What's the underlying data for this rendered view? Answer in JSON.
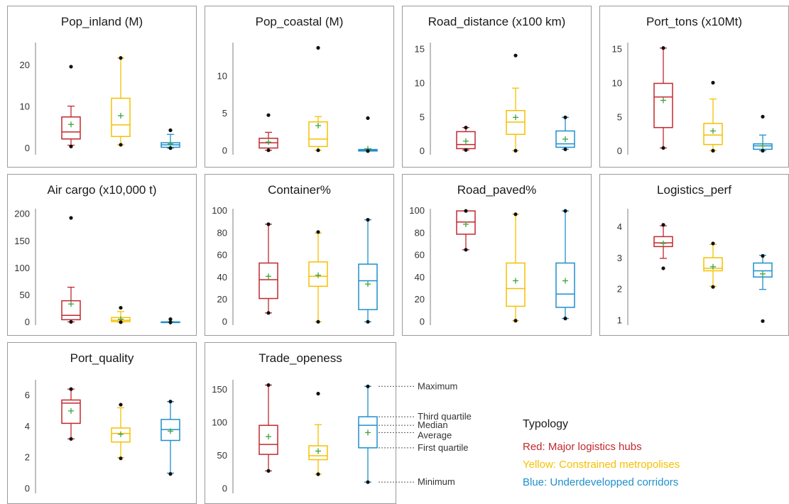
{
  "colors": {
    "red": "#c0282e",
    "yellow": "#f5c000",
    "blue": "#1e8fcc",
    "average_marker": "#3aa53a",
    "outlier": "#111111",
    "frame": "#9a9a9a",
    "axis": "#7f7f7f"
  },
  "chart_data": [
    {
      "type": "boxplot",
      "title": "Pop_inland (M)",
      "yticks": [
        0,
        10,
        20
      ],
      "ylim": [
        -1.5,
        25.5
      ],
      "boxes": [
        {
          "group": "red",
          "min": 0.8,
          "q1": 2.3,
          "median": 4.0,
          "q3": 7.6,
          "max": 10.2,
          "mean": 5.8,
          "outliers": [
            19.7,
            0.5
          ]
        },
        {
          "group": "yellow",
          "min": 0.9,
          "q1": 2.9,
          "median": 5.7,
          "q3": 12.1,
          "max": 21.8,
          "mean": 7.9,
          "outliers": [
            21.8,
            0.9
          ]
        },
        {
          "group": "blue",
          "min": 0.1,
          "q1": 0.3,
          "median": 0.9,
          "q3": 1.4,
          "max": 3.4,
          "mean": 1.1,
          "outliers": [
            4.4,
            0.1
          ]
        }
      ]
    },
    {
      "type": "boxplot",
      "title": "Pop_coastal (M)",
      "yticks": [
        0,
        5,
        10
      ],
      "ylim": [
        -0.5,
        14.5
      ],
      "boxes": [
        {
          "group": "red",
          "min": 0.1,
          "q1": 0.4,
          "median": 1.1,
          "q3": 1.7,
          "max": 2.5,
          "mean": 1.2,
          "outliers": [
            4.8,
            0.1
          ]
        },
        {
          "group": "yellow",
          "min": 0.1,
          "q1": 0.6,
          "median": 1.6,
          "q3": 3.9,
          "max": 4.6,
          "mean": 3.4,
          "outliers": [
            13.8,
            0.1
          ]
        },
        {
          "group": "blue",
          "min": 0.0,
          "q1": 0.0,
          "median": 0.1,
          "q3": 0.2,
          "max": 0.3,
          "mean": 0.3,
          "outliers": [
            4.4,
            0.0
          ]
        }
      ]
    },
    {
      "type": "boxplot",
      "title": "Road_distance (x100 km)",
      "yticks": [
        0,
        5,
        10,
        15
      ],
      "ylim": [
        -0.5,
        16.0
      ],
      "boxes": [
        {
          "group": "red",
          "min": 0.2,
          "q1": 0.4,
          "median": 1.0,
          "q3": 2.9,
          "max": 3.5,
          "mean": 1.5,
          "outliers": [
            3.5,
            0.2
          ]
        },
        {
          "group": "yellow",
          "min": 0.1,
          "q1": 2.5,
          "median": 4.3,
          "q3": 6.0,
          "max": 9.3,
          "mean": 5.0,
          "outliers": [
            14.1,
            0.1
          ]
        },
        {
          "group": "blue",
          "min": 0.3,
          "q1": 0.6,
          "median": 1.1,
          "q3": 3.0,
          "max": 5.0,
          "mean": 1.8,
          "outliers": [
            5.0,
            0.3
          ]
        }
      ]
    },
    {
      "type": "boxplot",
      "title": "Port_tons (x10Mt)",
      "yticks": [
        0,
        5,
        10,
        15
      ],
      "ylim": [
        -0.5,
        16.0
      ],
      "boxes": [
        {
          "group": "red",
          "min": 0.5,
          "q1": 3.5,
          "median": 8.0,
          "q3": 10.0,
          "max": 15.2,
          "mean": 7.5,
          "outliers": [
            15.2,
            0.5
          ]
        },
        {
          "group": "yellow",
          "min": 0.1,
          "q1": 1.0,
          "median": 2.4,
          "q3": 4.1,
          "max": 7.7,
          "mean": 3.0,
          "outliers": [
            10.1,
            0.1
          ]
        },
        {
          "group": "blue",
          "min": 0.1,
          "q1": 0.3,
          "median": 0.8,
          "q3": 1.1,
          "max": 2.4,
          "mean": 0.8,
          "outliers": [
            5.1,
            0.1
          ]
        }
      ]
    },
    {
      "type": "boxplot",
      "title": "Air cargo (x10,000 t)",
      "yticks": [
        0,
        50,
        100,
        150,
        200
      ],
      "ylim": [
        -5,
        210
      ],
      "boxes": [
        {
          "group": "red",
          "min": 1,
          "q1": 5,
          "median": 13,
          "q3": 40,
          "max": 65,
          "mean": 34,
          "outliers": [
            193,
            1
          ]
        },
        {
          "group": "yellow",
          "min": 0.5,
          "q1": 1.5,
          "median": 4,
          "q3": 9,
          "max": 20,
          "mean": 6,
          "outliers": [
            27,
            0.5
          ]
        },
        {
          "group": "blue",
          "min": 0.1,
          "q1": 0.3,
          "median": 0.6,
          "q3": 1.0,
          "max": 1.5,
          "mean": 1,
          "outliers": [
            6,
            0.1
          ]
        }
      ]
    },
    {
      "type": "boxplot",
      "title": "Container%",
      "yticks": [
        0,
        20,
        40,
        60,
        80,
        100
      ],
      "ylim": [
        -3,
        102
      ],
      "boxes": [
        {
          "group": "red",
          "min": 8,
          "q1": 21,
          "median": 38,
          "q3": 53,
          "max": 88,
          "mean": 41,
          "outliers": [
            88,
            8
          ]
        },
        {
          "group": "yellow",
          "min": 0,
          "q1": 32,
          "median": 41,
          "q3": 54,
          "max": 80,
          "mean": 42,
          "outliers": [
            81,
            0
          ]
        },
        {
          "group": "blue",
          "min": 0,
          "q1": 11,
          "median": 37,
          "q3": 52,
          "max": 92,
          "mean": 34,
          "outliers": [
            92,
            0
          ]
        }
      ]
    },
    {
      "type": "boxplot",
      "title": "Road_paved%",
      "yticks": [
        0,
        20,
        40,
        60,
        80,
        100
      ],
      "ylim": [
        -3,
        102
      ],
      "boxes": [
        {
          "group": "red",
          "min": 65,
          "q1": 79,
          "median": 90,
          "q3": 100,
          "max": 100,
          "mean": 88,
          "outliers": [
            100,
            65
          ]
        },
        {
          "group": "yellow",
          "min": 1,
          "q1": 14,
          "median": 30,
          "q3": 53,
          "max": 97,
          "mean": 37,
          "outliers": [
            97,
            1
          ]
        },
        {
          "group": "blue",
          "min": 3,
          "q1": 13,
          "median": 25,
          "q3": 53,
          "max": 100,
          "mean": 37,
          "outliers": [
            100,
            3
          ]
        }
      ]
    },
    {
      "type": "boxplot",
      "title": "Logistics_perf",
      "yticks": [
        1,
        2,
        3,
        4
      ],
      "ylim": [
        0.85,
        4.6
      ],
      "boxes": [
        {
          "group": "red",
          "min": 3.0,
          "q1": 3.38,
          "median": 3.5,
          "q3": 3.7,
          "max": 4.05,
          "mean": 3.48,
          "outliers": [
            4.08,
            2.68
          ]
        },
        {
          "group": "yellow",
          "min": 2.1,
          "q1": 2.6,
          "median": 2.68,
          "q3": 3.02,
          "max": 3.45,
          "mean": 2.73,
          "outliers": [
            3.48,
            2.08
          ]
        },
        {
          "group": "blue",
          "min": 2.0,
          "q1": 2.4,
          "median": 2.6,
          "q3": 2.85,
          "max": 3.1,
          "mean": 2.5,
          "outliers": [
            3.08,
            0.98
          ]
        }
      ]
    },
    {
      "type": "boxplot",
      "title": "Port_quality",
      "yticks": [
        0,
        2,
        4,
        6
      ],
      "ylim": [
        -0.3,
        7.0
      ],
      "boxes": [
        {
          "group": "red",
          "min": 3.2,
          "q1": 4.2,
          "median": 5.5,
          "q3": 5.7,
          "max": 6.4,
          "mean": 5.0,
          "outliers": [
            6.4,
            3.2
          ]
        },
        {
          "group": "yellow",
          "min": 2.0,
          "q1": 3.0,
          "median": 3.55,
          "q3": 3.9,
          "max": 5.2,
          "mean": 3.5,
          "outliers": [
            5.4,
            1.95
          ]
        },
        {
          "group": "blue",
          "min": 1.0,
          "q1": 3.1,
          "median": 3.8,
          "q3": 4.45,
          "max": 5.6,
          "mean": 3.7,
          "outliers": [
            5.6,
            0.95
          ]
        }
      ]
    },
    {
      "type": "boxplot",
      "title": "Trade_openess",
      "yticks": [
        0,
        50,
        100,
        150
      ],
      "ylim": [
        -7,
        165
      ],
      "boxes": [
        {
          "group": "red",
          "min": 27,
          "q1": 52,
          "median": 67,
          "q3": 96,
          "max": 157,
          "mean": 79,
          "outliers": [
            157,
            27
          ]
        },
        {
          "group": "yellow",
          "min": 22,
          "q1": 44,
          "median": 50,
          "q3": 65,
          "max": 97,
          "mean": 57,
          "outliers": [
            144,
            22
          ]
        },
        {
          "group": "blue",
          "min": 10,
          "q1": 62,
          "median": 96,
          "q3": 109,
          "max": 155,
          "mean": 85,
          "outliers": [
            155,
            10
          ]
        }
      ]
    }
  ],
  "annotations": {
    "maximum": "Maximum",
    "third_quartile": "Third quartile",
    "median": "Median",
    "average": "Average",
    "first_quartile": "First quartile",
    "minimum": "Minimum"
  },
  "legend": {
    "title": "Typology",
    "items": [
      {
        "label": "Red: Major logistics hubs",
        "color": "#c0282e"
      },
      {
        "label": "Yellow: Constrained metropolises",
        "color": "#f5c000"
      },
      {
        "label": "Blue:  Underdevelopped corridors",
        "color": "#1e8fcc"
      }
    ]
  }
}
